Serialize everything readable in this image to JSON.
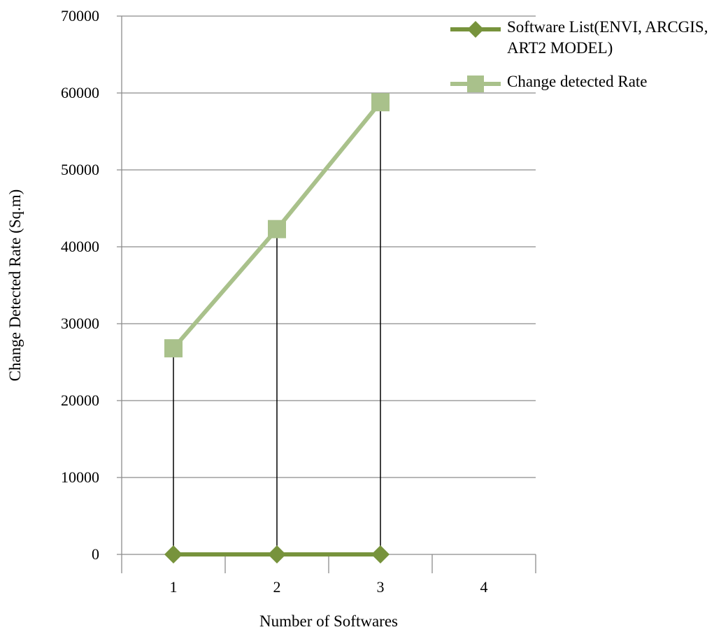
{
  "chart_data": {
    "type": "line",
    "xlabel": "Number of Softwares",
    "ylabel": "Change Detected Rate (Sq.m)",
    "categories": [
      "1",
      "2",
      "3",
      "4"
    ],
    "ylim": [
      0,
      70000
    ],
    "yticks": [
      "0",
      "10000",
      "20000",
      "30000",
      "40000",
      "50000",
      "60000",
      "70000"
    ],
    "ytick_values": [
      0,
      10000,
      20000,
      30000,
      40000,
      50000,
      60000,
      70000
    ],
    "grid": "horizontal",
    "drop_lines": true,
    "legend_position": "right",
    "series": [
      {
        "name": "Software List(ENVI, ARCGIS, ART2 MODEL)",
        "marker": "diamond",
        "color": "#77933c",
        "values": [
          0,
          0,
          0,
          null
        ]
      },
      {
        "name": "Change detected Rate",
        "marker": "square",
        "color": "#a9c18b",
        "values": [
          26800,
          42300,
          58800,
          null
        ]
      }
    ]
  }
}
